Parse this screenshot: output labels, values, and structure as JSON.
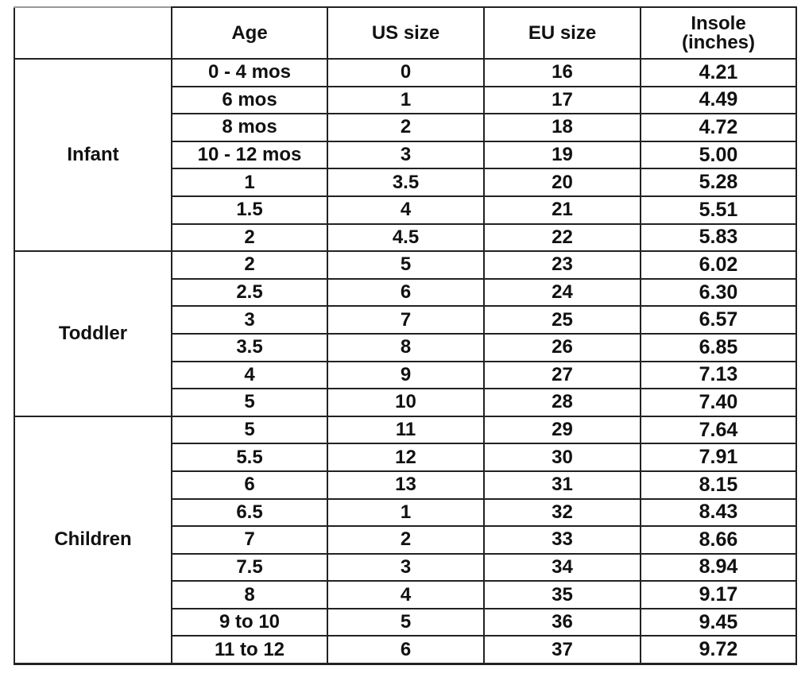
{
  "table": {
    "header": [
      "Age",
      "US size",
      "EU size",
      "Insole (inches)"
    ],
    "groups": [
      {
        "label": "Infant",
        "rows": [
          [
            "0 - 4 mos",
            "0",
            "16",
            "4.21"
          ],
          [
            "6 mos",
            "1",
            "17",
            "4.49"
          ],
          [
            "8 mos",
            "2",
            "18",
            "4.72"
          ],
          [
            "10 - 12 mos",
            "3",
            "19",
            "5.00"
          ],
          [
            "1",
            "3.5",
            "20",
            "5.28"
          ],
          [
            "1.5",
            "4",
            "21",
            "5.51"
          ],
          [
            "2",
            "4.5",
            "22",
            "5.83"
          ]
        ]
      },
      {
        "label": "Toddler",
        "rows": [
          [
            "2",
            "5",
            "23",
            "6.02"
          ],
          [
            "2.5",
            "6",
            "24",
            "6.30"
          ],
          [
            "3",
            "7",
            "25",
            "6.57"
          ],
          [
            "3.5",
            "8",
            "26",
            "6.85"
          ],
          [
            "4",
            "9",
            "27",
            "7.13"
          ],
          [
            "5",
            "10",
            "28",
            "7.40"
          ]
        ]
      },
      {
        "label": "Children",
        "rows": [
          [
            "5",
            "11",
            "29",
            "7.64"
          ],
          [
            "5.5",
            "12",
            "30",
            "7.91"
          ],
          [
            "6",
            "13",
            "31",
            "8.15"
          ],
          [
            "6.5",
            "1",
            "32",
            "8.43"
          ],
          [
            "7",
            "2",
            "33",
            "8.66"
          ],
          [
            "7.5",
            "3",
            "34",
            "8.94"
          ],
          [
            "8",
            "4",
            "35",
            "9.17"
          ],
          [
            "9 to 10",
            "5",
            "36",
            "9.45"
          ],
          [
            "11 to 12",
            "6",
            "37",
            "9.72"
          ]
        ]
      }
    ]
  }
}
